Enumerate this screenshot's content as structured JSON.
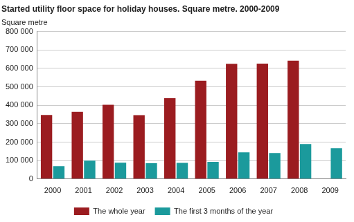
{
  "chart_data": {
    "type": "bar",
    "title": "Started utility floor space for holiday houses. Square metre. 2000-2009",
    "y_label": "Square metre",
    "categories": [
      "2000",
      "2001",
      "2002",
      "2003",
      "2004",
      "2005",
      "2006",
      "2007",
      "2008",
      "2009"
    ],
    "series": [
      {
        "name": "The whole year",
        "color": "#9b1c20",
        "values": [
          347000,
          364000,
          403000,
          346000,
          438000,
          533000,
          625000,
          626000,
          642000,
          null
        ]
      },
      {
        "name": "The first 3 months of the year",
        "color": "#1b9a9c",
        "values": [
          70000,
          100000,
          88000,
          86000,
          87000,
          93000,
          145000,
          141000,
          190000,
          167000
        ]
      }
    ],
    "ylim": [
      0,
      800000
    ],
    "yticks": [
      0,
      {
        "value": 100000,
        "label": "100 000"
      },
      {
        "value": 200000,
        "label": "200 000"
      },
      {
        "value": 300000,
        "label": "300 000"
      },
      {
        "value": 400000,
        "label": "400 000"
      },
      {
        "value": 500000,
        "label": "500 000"
      },
      {
        "value": 600000,
        "label": "600 000"
      },
      {
        "value": 700000,
        "label": "700 000"
      },
      {
        "value": 800000,
        "label": "800 000"
      }
    ],
    "grid": true,
    "legend": "bottom"
  }
}
